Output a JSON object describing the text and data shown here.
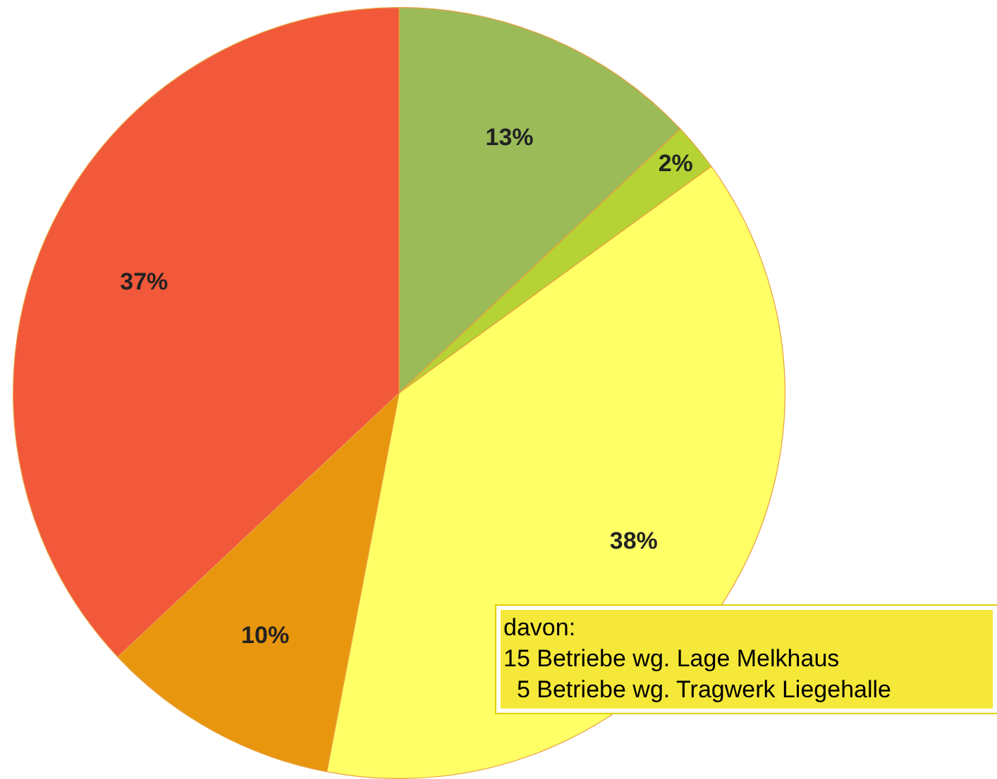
{
  "chart_data": {
    "type": "pie",
    "categories": [
      null,
      null,
      null,
      null,
      null
    ],
    "values": [
      13,
      2,
      38,
      10,
      37
    ],
    "colors": [
      "#9bbb59",
      "#b5d334",
      "#ffff66",
      "#e8960e",
      "#f2583a"
    ],
    "value_labels": [
      "13%",
      "2%",
      "38%",
      "10%",
      "37%"
    ],
    "legend": false,
    "annotations": [
      "davon:\n15 Betriebe wg. Lage Melkhaus\n  5 Betriebe wg. Tragwerk Liegehalle"
    ]
  }
}
